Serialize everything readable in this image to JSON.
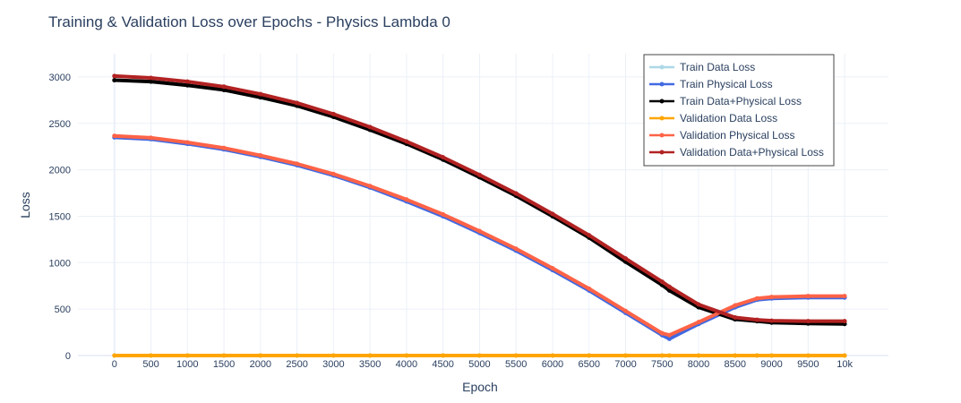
{
  "chart_data": {
    "type": "line",
    "title": "Training & Validation Loss over Epochs  - Physics Lambda 0",
    "xlabel": "Epoch",
    "ylabel": "Loss",
    "xlim": [
      -500,
      10600
    ],
    "ylim": [
      0,
      3250
    ],
    "xticks": [
      0,
      500,
      1000,
      1500,
      2000,
      2500,
      3000,
      3500,
      4000,
      4500,
      5000,
      5500,
      6000,
      6500,
      7000,
      7500,
      8000,
      8500,
      9000,
      9500,
      10000
    ],
    "xtick_labels": [
      "0",
      "500",
      "1000",
      "1500",
      "2000",
      "2500",
      "3000",
      "3500",
      "4000",
      "4500",
      "5000",
      "5500",
      "6000",
      "6500",
      "7000",
      "7500",
      "8000",
      "8500",
      "9000",
      "9500",
      "10k"
    ],
    "yticks": [
      0,
      500,
      1000,
      1500,
      2000,
      2500,
      3000
    ],
    "ytick_labels": [
      "0",
      "500",
      "1000",
      "1500",
      "2000",
      "2500",
      "3000"
    ],
    "grid": true,
    "legend_position": "top-right",
    "x": [
      0,
      500,
      1000,
      1500,
      2000,
      2500,
      3000,
      3500,
      4000,
      4500,
      5000,
      5500,
      6000,
      6500,
      7000,
      7500,
      7600,
      8000,
      8500,
      8800,
      9000,
      9500,
      10000
    ],
    "series": [
      {
        "name": "Train Data Loss",
        "color": "#add8e6",
        "values": [
          0,
          0,
          0,
          0,
          0,
          0,
          0,
          0,
          0,
          0,
          0,
          0,
          0,
          0,
          0,
          0,
          0,
          0,
          0,
          0,
          0,
          0,
          0
        ]
      },
      {
        "name": "Train Physical Loss",
        "color": "#4169e1",
        "values": [
          2350,
          2330,
          2280,
          2220,
          2140,
          2050,
          1940,
          1810,
          1660,
          1500,
          1320,
          1130,
          920,
          700,
          460,
          220,
          180,
          340,
          520,
          600,
          615,
          625,
          625
        ]
      },
      {
        "name": "Train Data+Physical Loss",
        "color": "#000000",
        "values": [
          2965,
          2950,
          2910,
          2860,
          2780,
          2690,
          2570,
          2430,
          2280,
          2110,
          1920,
          1720,
          1500,
          1270,
          1010,
          760,
          700,
          520,
          390,
          370,
          355,
          345,
          340
        ]
      },
      {
        "name": "Validation Data Loss",
        "color": "#ffa500",
        "values": [
          0,
          0,
          0,
          0,
          0,
          0,
          0,
          0,
          0,
          0,
          0,
          0,
          0,
          0,
          0,
          0,
          0,
          0,
          0,
          0,
          0,
          0,
          0
        ]
      },
      {
        "name": "Validation Physical Loss",
        "color": "#ff6347",
        "values": [
          2365,
          2345,
          2295,
          2235,
          2155,
          2065,
          1955,
          1825,
          1680,
          1520,
          1340,
          1150,
          940,
          720,
          480,
          240,
          220,
          360,
          540,
          615,
          630,
          640,
          640
        ]
      },
      {
        "name": "Validation Data+Physical Loss",
        "color": "#b22222",
        "values": [
          3010,
          2990,
          2950,
          2895,
          2815,
          2720,
          2600,
          2460,
          2305,
          2135,
          1945,
          1745,
          1525,
          1295,
          1045,
          795,
          740,
          550,
          410,
          385,
          375,
          370,
          370
        ]
      }
    ]
  }
}
